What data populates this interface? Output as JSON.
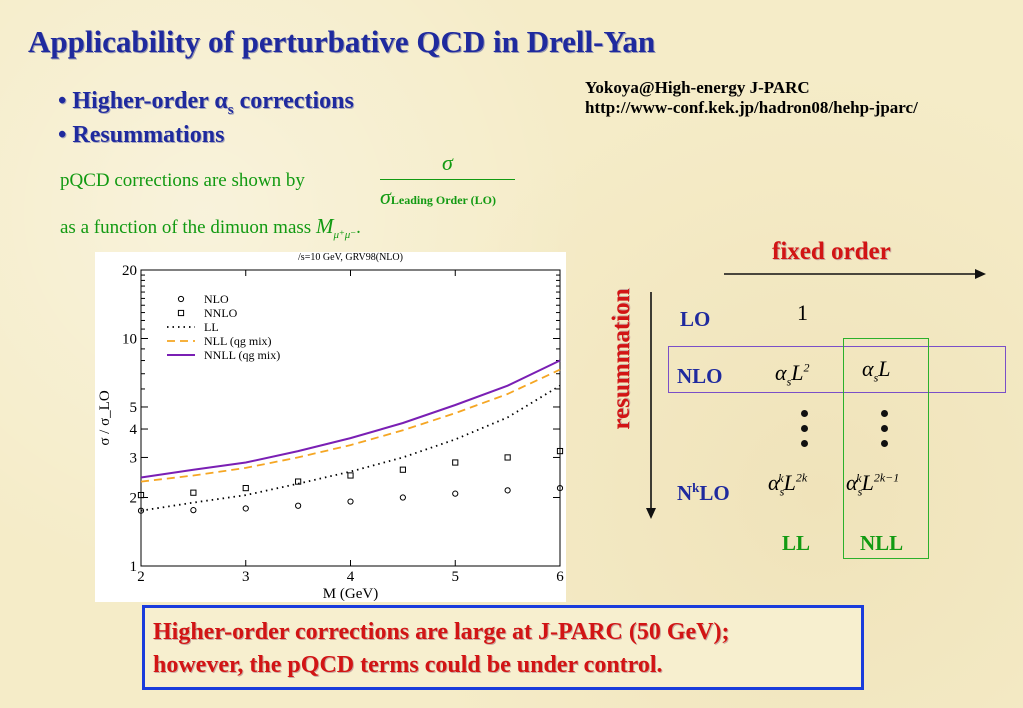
{
  "slide": {
    "title": "Applicability of perturbative QCD in Drell-Yan",
    "bullet1_prefix": "• Higher-order ",
    "bullet1_alpha": "α",
    "bullet1_sub": "s",
    "bullet1_suffix": " corrections",
    "bullet2": "• Resummations",
    "credit_line1": "Yokoya@High-energy J-PARC",
    "credit_line2": "http://www-conf.kek.jp/hadron08/hehp-jparc/",
    "pqcd_text": "pQCD corrections are shown by",
    "frac_num": "σ",
    "frac_den": "σ",
    "frac_den_sub": "Leading Order (LO)",
    "mass_text": "as a function of the dimuon mass",
    "mass_symbol": "M",
    "mass_sub": "μ⁺μ⁻",
    "mass_period": ".",
    "conclusion_line1": "Higher-order corrections are large at J-PARC (50 GeV);",
    "conclusion_line2": "however, the pQCD terms could be under control."
  },
  "diagram": {
    "fixed_order": "fixed order",
    "resummation": "resummation",
    "row_lo": "LO",
    "row_nlo": "NLO",
    "row_nklo_n": "N",
    "row_nklo_k": "k",
    "row_nklo_lo": "LO",
    "col_ll": "LL",
    "col_nll": "NLL",
    "lo_value": "1",
    "nlo_ll": "αsL2",
    "nlo_nll": "αsL",
    "nk_ll": "αskL2k",
    "nk_nll": "αskL2k−1",
    "colors": {
      "red": "#d21414",
      "blue": "#1f2a9e",
      "green": "#129a12",
      "box_purple": "#7a4fc8",
      "box_green": "#2bb02b"
    }
  },
  "chart_data": {
    "type": "line",
    "title": "/s=10 GeV, GRV98(NLO)",
    "xlabel": "M (GeV)",
    "ylabel": "σ / σ_LO",
    "xlim": [
      2,
      6
    ],
    "ylim": [
      1,
      20
    ],
    "yscale": "log",
    "xticks": [
      2,
      3,
      4,
      5,
      6
    ],
    "yticks": [
      1,
      2,
      3,
      4,
      5,
      10,
      20
    ],
    "legend_position": "top-left",
    "series": [
      {
        "name": "NLO",
        "style": "circle",
        "color": "#000000",
        "x": [
          2,
          2.5,
          3,
          3.5,
          4,
          4.5,
          5,
          5.5,
          6
        ],
        "y": [
          1.75,
          1.76,
          1.79,
          1.84,
          1.92,
          2.0,
          2.08,
          2.15,
          2.2
        ]
      },
      {
        "name": "NNLO",
        "style": "square",
        "color": "#000000",
        "x": [
          2,
          2.5,
          3,
          3.5,
          4,
          4.5,
          5,
          5.5,
          6
        ],
        "y": [
          2.05,
          2.1,
          2.2,
          2.35,
          2.5,
          2.65,
          2.85,
          3.0,
          3.2
        ]
      },
      {
        "name": "LL",
        "style": "dotted",
        "color": "#000000",
        "x": [
          2,
          2.5,
          3,
          3.5,
          4,
          4.5,
          5,
          5.5,
          6
        ],
        "y": [
          1.75,
          1.9,
          2.05,
          2.3,
          2.6,
          3.0,
          3.6,
          4.5,
          6.2
        ]
      },
      {
        "name": "NLL (qg mix)",
        "style": "dashed",
        "color": "#f5a623",
        "x": [
          2,
          2.5,
          3,
          3.5,
          4,
          4.5,
          5,
          5.5,
          6
        ],
        "y": [
          2.35,
          2.5,
          2.7,
          3.0,
          3.4,
          3.95,
          4.7,
          5.7,
          7.3
        ]
      },
      {
        "name": "NNLL (qg mix)",
        "style": "solid",
        "color": "#7a1fb4",
        "x": [
          2,
          2.5,
          3,
          3.5,
          4,
          4.5,
          5,
          5.5,
          6
        ],
        "y": [
          2.45,
          2.65,
          2.85,
          3.2,
          3.65,
          4.25,
          5.1,
          6.2,
          8.0
        ]
      }
    ]
  }
}
